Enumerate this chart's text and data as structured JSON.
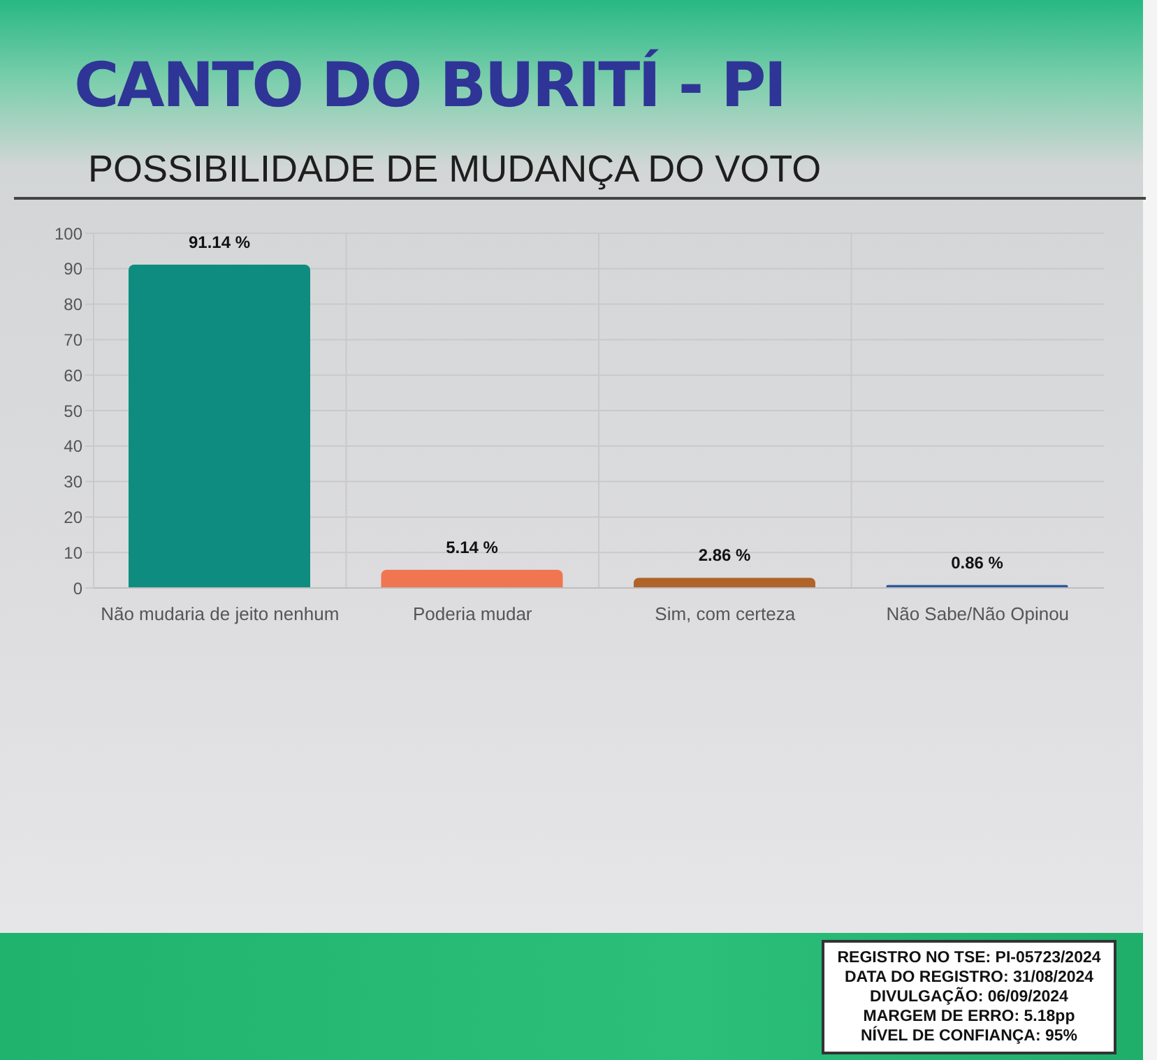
{
  "chart_data": {
    "type": "bar",
    "title": "CANTO DO BURITÍ - PI",
    "subtitle": "POSSIBILIDADE DE MUDANÇA DO VOTO",
    "categories": [
      "Não mudaria de jeito nenhum",
      "Poderia mudar",
      "Sim, com certeza",
      "Não Sabe/Não Opinou"
    ],
    "values": [
      91.14,
      5.14,
      2.86,
      0.86
    ],
    "colors": [
      "#0e8c80",
      "#ef7650",
      "#b0642a",
      "#2a5a9a"
    ],
    "value_labels": [
      "91.14 %",
      "5.14 %",
      "2.86 %",
      "0.86 %"
    ],
    "ylim": [
      0,
      100
    ],
    "yticks": [
      0,
      10,
      20,
      30,
      40,
      50,
      60,
      70,
      80,
      90,
      100
    ],
    "grid": true,
    "annotations": [
      "REGISTRO NO TSE: PI-05723/2024",
      "DATA DO REGISTRO: 31/08/2024",
      "DIVULGAÇÃO: 06/09/2024",
      "MARGEM DE ERRO: 5.18pp",
      "NÍVEL DE CONFIANÇA: 95%"
    ]
  }
}
